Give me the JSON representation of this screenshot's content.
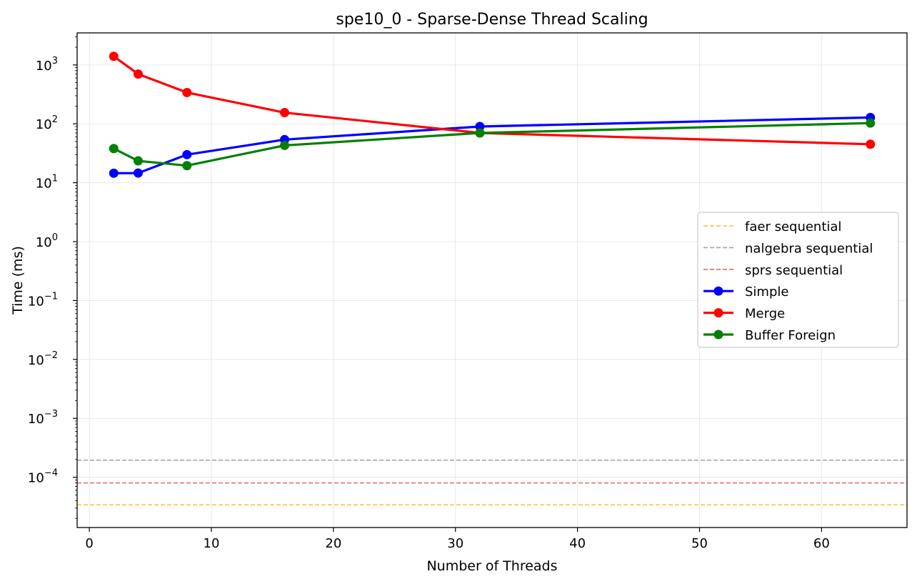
{
  "chart_data": {
    "type": "line",
    "title": "spe10_0 - Sparse-Dense Thread Scaling",
    "xlabel": "Number of Threads",
    "ylabel": "Time (ms)",
    "xlim": [
      -1,
      67
    ],
    "ylim": [
      1.4e-05,
      3500
    ],
    "yscale": "log",
    "grid": true,
    "legend_position": "center-right",
    "xticks": [
      0,
      10,
      20,
      30,
      40,
      50,
      60
    ],
    "yticks": [
      {
        "base": "10",
        "exp": "3",
        "value": 1000
      },
      {
        "base": "10",
        "exp": "2",
        "value": 100
      },
      {
        "base": "10",
        "exp": "1",
        "value": 10
      },
      {
        "base": "10",
        "exp": "0",
        "value": 1
      },
      {
        "base": "10",
        "exp": "−1",
        "value": 0.1
      },
      {
        "base": "10",
        "exp": "−2",
        "value": 0.01
      },
      {
        "base": "10",
        "exp": "−3",
        "value": 0.001
      },
      {
        "base": "10",
        "exp": "−4",
        "value": 0.0001
      }
    ],
    "hlines": [
      {
        "name": "faer sequential",
        "value": 3.4e-05,
        "color": "#ffa500"
      },
      {
        "name": "nalgebra sequential",
        "value": 0.000195,
        "color": "#808080"
      },
      {
        "name": "sprs sequential",
        "value": 8e-05,
        "color": "#cd3a3a"
      }
    ],
    "x": [
      2,
      4,
      8,
      16,
      32,
      64
    ],
    "series": [
      {
        "name": "Simple",
        "color": "#0000ff",
        "values": [
          14.5,
          14.6,
          30,
          54,
          90,
          128
        ]
      },
      {
        "name": "Merge",
        "color": "#ff0000",
        "values": [
          1400,
          700,
          340,
          155,
          70,
          45
        ]
      },
      {
        "name": "Buffer Foreign",
        "color": "#008000",
        "values": [
          38,
          23.5,
          19.5,
          43,
          70,
          103
        ]
      }
    ]
  }
}
